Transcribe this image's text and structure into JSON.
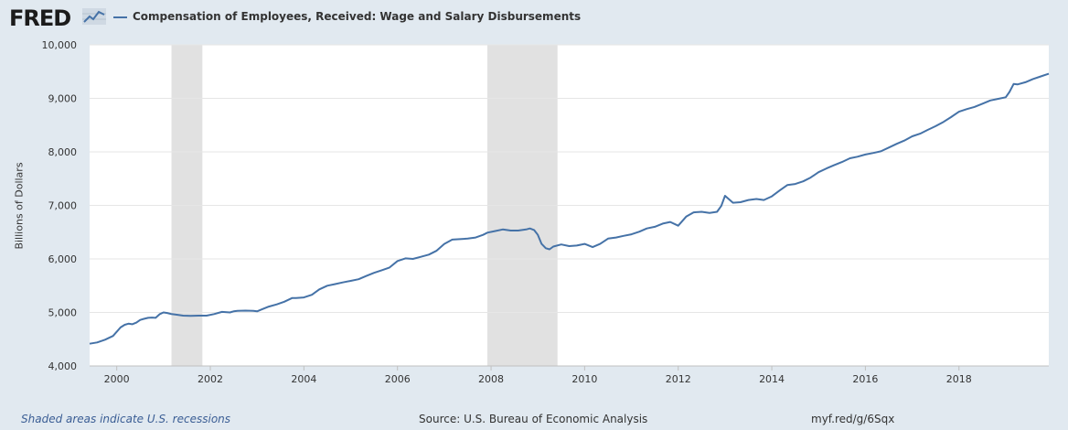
{
  "header": {
    "logo_text": "FRED",
    "logo_icon": "trend-chart-icon",
    "series_title": "Compensation of Employees, Received: Wage and Salary Disbursements"
  },
  "footer": {
    "recession_note": "Shaded areas indicate U.S. recessions",
    "source": "Source: U.S. Bureau of Economic Analysis",
    "shortlink": "myf.red/g/6Sqx"
  },
  "colors": {
    "background": "#e1e9f0",
    "plot_background": "#ffffff",
    "line": "#4572a7",
    "recession": "#e1e1e1",
    "grid": "#e6e6e6"
  },
  "chart_data": {
    "type": "line",
    "title": "",
    "xlabel": "",
    "ylabel": "Billions of Dollars",
    "xlim": [
      1999.42,
      2019.92
    ],
    "ylim": [
      4000,
      10000
    ],
    "x_ticks": [
      2000,
      2002,
      2004,
      2006,
      2008,
      2010,
      2012,
      2014,
      2016,
      2018
    ],
    "x_tick_labels": [
      "2000",
      "2002",
      "2004",
      "2006",
      "2008",
      "2010",
      "2012",
      "2014",
      "2016",
      "2018"
    ],
    "y_ticks": [
      4000,
      5000,
      6000,
      7000,
      8000,
      9000,
      10000
    ],
    "y_tick_labels": [
      "4,000",
      "5,000",
      "6,000",
      "7,000",
      "8,000",
      "9,000",
      "10,000"
    ],
    "grid": true,
    "recessions": [
      {
        "start": 2001.17,
        "end": 2001.83
      },
      {
        "start": 2007.92,
        "end": 2009.42
      }
    ],
    "series": [
      {
        "name": "Compensation of Employees, Received: Wage and Salary Disbursements",
        "x": [
          1999.42,
          1999.58,
          1999.75,
          1999.92,
          2000.0,
          2000.08,
          2000.17,
          2000.25,
          2000.33,
          2000.42,
          2000.5,
          2000.58,
          2000.67,
          2000.75,
          2000.83,
          2000.92,
          2001.0,
          2001.08,
          2001.17,
          2001.25,
          2001.42,
          2001.58,
          2001.75,
          2001.92,
          2002.08,
          2002.25,
          2002.42,
          2002.5,
          2002.58,
          2002.75,
          2002.92,
          2003.0,
          2003.08,
          2003.25,
          2003.42,
          2003.58,
          2003.75,
          2003.83,
          2004.0,
          2004.17,
          2004.33,
          2004.5,
          2004.67,
          2004.83,
          2005.0,
          2005.17,
          2005.33,
          2005.5,
          2005.67,
          2005.83,
          2006.0,
          2006.17,
          2006.33,
          2006.5,
          2006.67,
          2006.83,
          2007.0,
          2007.17,
          2007.33,
          2007.5,
          2007.67,
          2007.83,
          2007.92,
          2008.08,
          2008.25,
          2008.42,
          2008.58,
          2008.75,
          2008.83,
          2008.92,
          2009.0,
          2009.08,
          2009.17,
          2009.25,
          2009.33,
          2009.5,
          2009.67,
          2009.83,
          2010.0,
          2010.17,
          2010.33,
          2010.5,
          2010.67,
          2010.83,
          2011.0,
          2011.17,
          2011.33,
          2011.5,
          2011.67,
          2011.83,
          2012.0,
          2012.17,
          2012.33,
          2012.5,
          2012.67,
          2012.83,
          2012.92,
          2013.0,
          2013.17,
          2013.33,
          2013.5,
          2013.67,
          2013.83,
          2014.0,
          2014.17,
          2014.33,
          2014.5,
          2014.67,
          2014.83,
          2015.0,
          2015.17,
          2015.33,
          2015.5,
          2015.67,
          2015.83,
          2016.0,
          2016.17,
          2016.33,
          2016.5,
          2016.67,
          2016.83,
          2017.0,
          2017.17,
          2017.33,
          2017.5,
          2017.67,
          2017.83,
          2018.0,
          2018.17,
          2018.33,
          2018.5,
          2018.67,
          2018.83,
          2019.0,
          2019.08,
          2019.17,
          2019.25,
          2019.42,
          2019.58,
          2019.75,
          2019.92
        ],
        "values": [
          4415,
          4440,
          4490,
          4560,
          4640,
          4720,
          4770,
          4790,
          4780,
          4810,
          4860,
          4880,
          4900,
          4905,
          4900,
          4970,
          5000,
          4990,
          4970,
          4960,
          4940,
          4935,
          4940,
          4940,
          4970,
          5010,
          5000,
          5020,
          5030,
          5035,
          5030,
          5020,
          5050,
          5110,
          5150,
          5200,
          5270,
          5270,
          5280,
          5330,
          5430,
          5500,
          5530,
          5560,
          5590,
          5620,
          5680,
          5740,
          5790,
          5840,
          5960,
          6010,
          6000,
          6040,
          6080,
          6150,
          6280,
          6360,
          6370,
          6380,
          6400,
          6450,
          6490,
          6520,
          6550,
          6530,
          6530,
          6550,
          6570,
          6540,
          6450,
          6280,
          6200,
          6180,
          6230,
          6270,
          6240,
          6250,
          6280,
          6220,
          6280,
          6380,
          6400,
          6430,
          6460,
          6510,
          6570,
          6600,
          6660,
          6690,
          6620,
          6790,
          6870,
          6880,
          6860,
          6880,
          6990,
          7180,
          7050,
          7060,
          7100,
          7120,
          7100,
          7170,
          7280,
          7380,
          7400,
          7450,
          7520,
          7620,
          7690,
          7750,
          7810,
          7880,
          7910,
          7950,
          7980,
          8010,
          8080,
          8150,
          8210,
          8290,
          8340,
          8410,
          8480,
          8560,
          8650,
          8750,
          8800,
          8840,
          8900,
          8960,
          8990,
          9020,
          9120,
          9270,
          9260,
          9300,
          9360,
          9410,
          9460
        ]
      }
    ]
  }
}
